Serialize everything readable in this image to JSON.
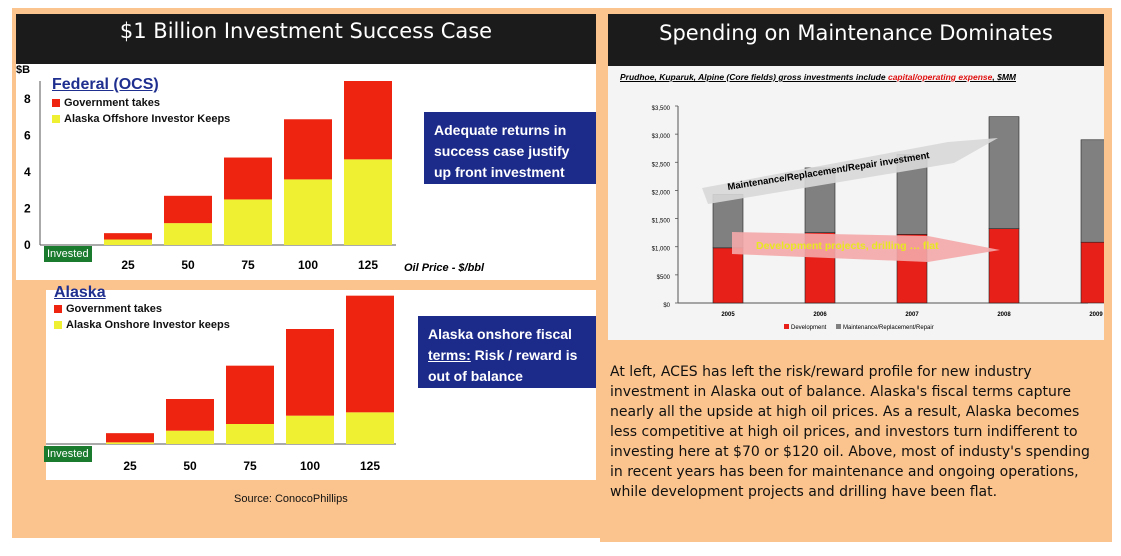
{
  "left_title": "$1 Billion Investment Success Case",
  "right_title": "Spending on Maintenance Dominates",
  "colors": {
    "government": "#ee2411",
    "investor": "#f0f032",
    "development": "#e8201a",
    "maintenance": "#808080",
    "callout": "#1c2a8a",
    "invested_tag": "#1a7a2e"
  },
  "federal": {
    "heading": "Federal (OCS)",
    "y_unit": "$B",
    "legend_gov": "Government takes",
    "legend_inv": "Alaska Offshore Investor Keeps",
    "invested_label": "Invested",
    "x_axis_label": "Oil Price - $/bbl",
    "callout": "Adequate returns in success case justify up front investment risk"
  },
  "alaska": {
    "heading": "Alaska",
    "legend_gov": "Government takes",
    "legend_inv": "Alaska Onshore Investor keeps",
    "invested_label": "Invested",
    "callout_pre": "Alaska onshore fiscal ",
    "callout_underlined": "terms:",
    "callout_post": " Risk / reward is out of balance"
  },
  "source": "Source:  ConocoPhillips",
  "spending": {
    "subtitle_pre": "Prudhoe, Kuparuk, Alpine (Core fields) gross investments include ",
    "subtitle_red": "capital/operating expense",
    "subtitle_post": ", $MM",
    "arrow_maintenance": "Maintenance/Replacement/Repair investment",
    "arrow_development": "Development projects, drilling … flat"
  },
  "chart_data": [
    {
      "type": "bar",
      "stacked": true,
      "categories": [
        "25",
        "50",
        "75",
        "100",
        "125"
      ],
      "xlabel": "Oil Price - $/bbl",
      "ylabel": "$B",
      "ylim": [
        0,
        9
      ],
      "yticks": [
        "0",
        "2",
        "4",
        "6",
        "8"
      ],
      "series": [
        {
          "name": "Alaska Offshore Investor Keeps",
          "values": [
            0.3,
            1.2,
            2.5,
            3.6,
            4.7
          ]
        },
        {
          "name": "Government takes",
          "values": [
            0.35,
            1.5,
            2.3,
            3.3,
            4.3
          ]
        }
      ]
    },
    {
      "type": "bar",
      "stacked": true,
      "categories": [
        "25",
        "50",
        "75",
        "100",
        "125"
      ],
      "xlabel": "",
      "ylim": [
        0,
        9
      ],
      "yticks": [
        "0",
        "2",
        "4",
        "6",
        "8"
      ],
      "series": [
        {
          "name": "Alaska Onshore Investor keeps",
          "values": [
            0.1,
            0.8,
            1.2,
            1.7,
            1.9
          ]
        },
        {
          "name": "Government takes",
          "values": [
            0.55,
            1.9,
            3.5,
            5.2,
            7.0
          ]
        }
      ]
    },
    {
      "type": "bar",
      "stacked": true,
      "categories": [
        "2005",
        "2006",
        "2007",
        "2008",
        "2009"
      ],
      "ylim": [
        0,
        3500
      ],
      "yticks": [
        "$0",
        "$500",
        "$1,000",
        "$1,500",
        "$2,000",
        "$2,500",
        "$3,000",
        "$3,500"
      ],
      "series": [
        {
          "name": "Development",
          "values": [
            980,
            1250,
            1220,
            1320,
            1080
          ]
        },
        {
          "name": "Maintenance/Replacement/Repair",
          "values": [
            950,
            1150,
            1420,
            1990,
            1820
          ]
        }
      ]
    }
  ],
  "body_text": "At left, ACES has left the risk/reward profile for new industry investment in Alaska out of balance.  Alaska's fiscal terms capture nearly all the upside at high oil prices. As a result, Alaska becomes less competitive at high oil prices, and investors turn indifferent to investing here at $70 or $120 oil.  Above, most of industy's spending in recent years has been for maintenance and ongoing operations, while development projects and drilling have been flat."
}
